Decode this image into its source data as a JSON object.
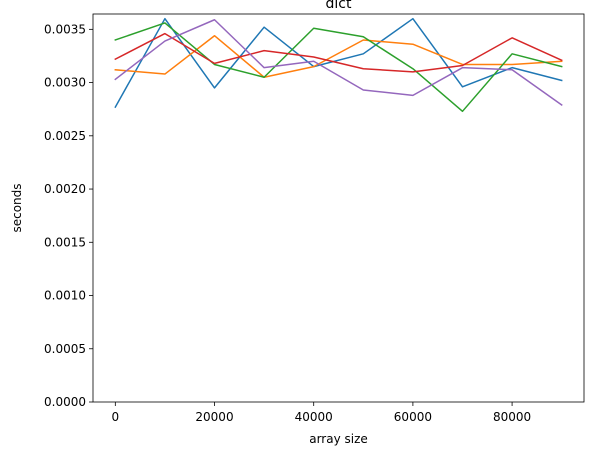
{
  "chart_data": {
    "type": "line",
    "title": "dict",
    "xlabel": "array size",
    "ylabel": "seconds",
    "xlim": [
      -4500,
      94500
    ],
    "ylim": [
      0,
      0.003644
    ],
    "x_ticks": [
      0,
      20000,
      40000,
      60000,
      80000
    ],
    "x_tick_labels": [
      "0",
      "20000",
      "40000",
      "60000",
      "80000"
    ],
    "y_ticks": [
      0,
      0.0005,
      0.001,
      0.0015,
      0.002,
      0.0025,
      0.003,
      0.0035
    ],
    "y_tick_labels": [
      "0.0000",
      "0.0005",
      "0.0010",
      "0.0015",
      "0.0020",
      "0.0025",
      "0.0030",
      "0.0035"
    ],
    "grid": false,
    "x": [
      0,
      10000,
      20000,
      30000,
      40000,
      50000,
      60000,
      70000,
      80000,
      90000
    ],
    "series": [
      {
        "color": "#1f77b4",
        "values": [
          0.00277,
          0.0036,
          0.00295,
          0.00352,
          0.00315,
          0.00327,
          0.0036,
          0.00296,
          0.00314,
          0.00302
        ]
      },
      {
        "color": "#ff7f0e",
        "values": [
          0.00312,
          0.00308,
          0.00344,
          0.00305,
          0.00315,
          0.0034,
          0.00336,
          0.00317,
          0.00317,
          0.0032
        ]
      },
      {
        "color": "#2ca02c",
        "values": [
          0.0034,
          0.00356,
          0.00317,
          0.00305,
          0.00351,
          0.00343,
          0.00313,
          0.00273,
          0.00327,
          0.00315
        ]
      },
      {
        "color": "#d62728",
        "values": [
          0.00322,
          0.00346,
          0.00318,
          0.0033,
          0.00324,
          0.00313,
          0.0031,
          0.00316,
          0.00342,
          0.00321
        ]
      },
      {
        "color": "#9467bd",
        "values": [
          0.00303,
          0.00339,
          0.00359,
          0.00314,
          0.0032,
          0.00293,
          0.00288,
          0.00314,
          0.00312,
          0.00279
        ]
      }
    ]
  }
}
